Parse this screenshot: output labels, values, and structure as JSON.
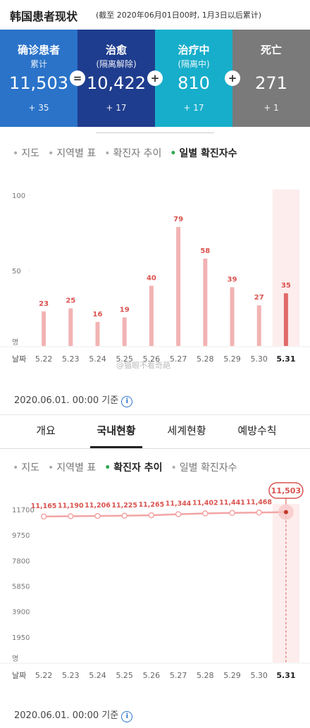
{
  "header": {
    "title": "韩国患者现状",
    "subtitle": "(截至 2020年06月01日00时, 1月3日以后累计)"
  },
  "stats": [
    {
      "label": "确诊患者",
      "sublabel": "累计",
      "value": "11,503",
      "change": "+ 35",
      "color": "#2a73c9"
    },
    {
      "label": "治愈",
      "sublabel": "(隔离解除)",
      "value": "10,422",
      "change": "+ 17",
      "color": "#1f3d8e"
    },
    {
      "label": "治疗中",
      "sublabel": "(隔离中)",
      "value": "810",
      "change": "+ 17",
      "color": "#17aecb"
    },
    {
      "label": "死亡",
      "value": "271",
      "change": "+ 1",
      "color": "#7a7a7a"
    }
  ],
  "operators": [
    "=",
    "+",
    "+"
  ],
  "tabs_top": {
    "items": [
      "지도",
      "지역별 표",
      "확진자 추이",
      "일별 확진자수"
    ],
    "active": 3
  },
  "nav": {
    "items": [
      "개요",
      "국내현황",
      "세계현황",
      "예방수칙"
    ],
    "active": 1
  },
  "tabs_bottom": {
    "items": [
      "지도",
      "지역별 표",
      "확진자 추이",
      "일별 확진자수"
    ],
    "active": 2
  },
  "timestamps": [
    "2020.06.01. 00:00 기준",
    "2020.06.01. 00:00 기준"
  ],
  "watermark": "@猫眼不看奇葩",
  "chart_data": [
    {
      "type": "bar",
      "unit_label": "명",
      "x_label": "날짜",
      "categories": [
        "5.22",
        "5.23",
        "5.24",
        "5.25",
        "5.26",
        "5.27",
        "5.28",
        "5.29",
        "5.30",
        "5.31"
      ],
      "values": [
        23,
        25,
        16,
        19,
        40,
        79,
        58,
        39,
        27,
        35
      ],
      "color": "#f2b3b3",
      "highlight_color": "#e06a6a",
      "label_color": "#d9534f",
      "highlight_index": 9,
      "ylim": [
        0,
        100
      ],
      "yticks": [
        50,
        100
      ]
    },
    {
      "type": "line",
      "unit_label": "명",
      "x_label": "날짜",
      "categories": [
        "5.22",
        "5.23",
        "5.24",
        "5.25",
        "5.26",
        "5.27",
        "5.28",
        "5.29",
        "5.30",
        "5.31"
      ],
      "values": [
        11165,
        11190,
        11206,
        11225,
        11265,
        11344,
        11402,
        11441,
        11468,
        11503
      ],
      "value_labels": [
        "11,165",
        "11,190",
        "11,206",
        "11,225",
        "11,265",
        "11,344",
        "11,402",
        "11,441",
        "11,468",
        "11,503"
      ],
      "color": "#f2a5a5",
      "label_color": "#d9534f",
      "highlight_index": 9,
      "ylim": [
        0,
        11700
      ],
      "yticks": [
        1950,
        3900,
        5850,
        7800,
        9750,
        11700
      ]
    }
  ]
}
